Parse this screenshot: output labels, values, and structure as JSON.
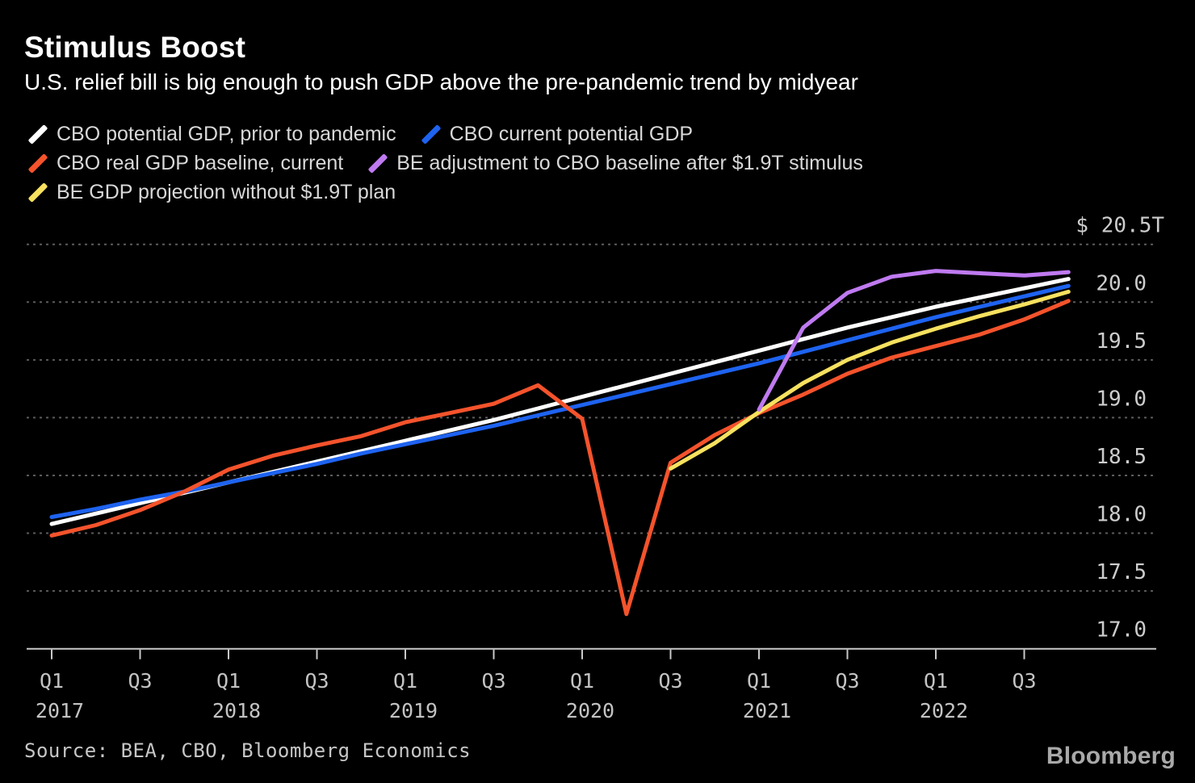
{
  "header": {
    "title": "Stimulus Boost",
    "subtitle": "U.S. relief bill is big enough to push GDP above the pre-pandemic trend by midyear"
  },
  "legend": {
    "rows": [
      [
        {
          "series_id": "cbo_potential_prior",
          "label": "CBO potential GDP, prior to pandemic"
        },
        {
          "series_id": "cbo_potential_current",
          "label": "CBO current potential GDP"
        }
      ],
      [
        {
          "series_id": "cbo_real_baseline",
          "label": "CBO real GDP baseline, current"
        },
        {
          "series_id": "be_adjustment_stimulus",
          "label": "BE adjustment to CBO baseline after $1.9T stimulus"
        }
      ],
      [
        {
          "series_id": "be_projection_no_plan",
          "label": "BE GDP projection without $1.9T plan"
        }
      ]
    ]
  },
  "chart_data": {
    "type": "line",
    "title": "Stimulus Boost",
    "x_unit": "quarter",
    "categories": [
      "2017Q1",
      "2017Q2",
      "2017Q3",
      "2017Q4",
      "2018Q1",
      "2018Q2",
      "2018Q3",
      "2018Q4",
      "2019Q1",
      "2019Q2",
      "2019Q3",
      "2019Q4",
      "2020Q1",
      "2020Q2",
      "2020Q3",
      "2020Q4",
      "2021Q1",
      "2021Q2",
      "2021Q3",
      "2021Q4",
      "2022Q1",
      "2022Q2",
      "2022Q3",
      "2022Q4"
    ],
    "x_axis": {
      "ticks": [
        {
          "index": 0,
          "label": "Q1",
          "year": "2017"
        },
        {
          "index": 2,
          "label": "Q3"
        },
        {
          "index": 4,
          "label": "Q1",
          "year": "2018"
        },
        {
          "index": 6,
          "label": "Q3"
        },
        {
          "index": 8,
          "label": "Q1",
          "year": "2019"
        },
        {
          "index": 10,
          "label": "Q3"
        },
        {
          "index": 12,
          "label": "Q1",
          "year": "2020"
        },
        {
          "index": 14,
          "label": "Q3"
        },
        {
          "index": 16,
          "label": "Q1",
          "year": "2021"
        },
        {
          "index": 18,
          "label": "Q3"
        },
        {
          "index": 20,
          "label": "Q1",
          "year": "2022"
        },
        {
          "index": 22,
          "label": "Q3"
        }
      ]
    },
    "y_axis": {
      "min": 17.0,
      "max": 20.5,
      "unit": "trillion USD",
      "gridline_values": [
        20.5,
        20.0,
        19.5,
        19.0,
        18.5,
        18.0,
        17.5
      ],
      "baseline_value": 17.0,
      "labels": [
        {
          "value": 20.5,
          "text": "$ 20.5T"
        },
        {
          "value": 20.0,
          "text": "20.0"
        },
        {
          "value": 19.5,
          "text": "19.5"
        },
        {
          "value": 19.0,
          "text": "19.0"
        },
        {
          "value": 18.5,
          "text": "18.5"
        },
        {
          "value": 18.0,
          "text": "18.0"
        },
        {
          "value": 17.5,
          "text": "17.5"
        },
        {
          "value": 17.0,
          "text": "17.0"
        }
      ]
    },
    "style": {
      "background": "#000000",
      "grid_color": "#5c5c5c",
      "axis_color": "#c9c9c9",
      "tick_label_color": "#c3c3c3",
      "y_label_color": "#cdcdcd",
      "grid_on": true,
      "legend_position": "top-left"
    },
    "series": [
      {
        "id": "cbo_potential_prior",
        "name": "CBO potential GDP, prior to pandemic",
        "color": "#ffffff",
        "values": [
          18.08,
          18.17,
          18.26,
          18.35,
          18.44,
          18.53,
          18.62,
          18.71,
          18.8,
          18.89,
          18.98,
          19.08,
          19.18,
          19.28,
          19.38,
          19.48,
          19.58,
          19.68,
          19.78,
          19.87,
          19.96,
          20.04,
          20.12,
          20.2
        ]
      },
      {
        "id": "cbo_potential_current",
        "name": "CBO current potential GDP",
        "color": "#1e63f0",
        "values": [
          18.14,
          18.21,
          18.29,
          18.36,
          18.44,
          18.52,
          18.6,
          18.69,
          18.77,
          18.85,
          18.93,
          19.02,
          19.11,
          19.2,
          19.29,
          19.38,
          19.47,
          19.57,
          19.67,
          19.77,
          19.87,
          19.96,
          20.05,
          20.14
        ]
      },
      {
        "id": "cbo_real_baseline",
        "name": "CBO real GDP baseline, current",
        "color": "#f4532c",
        "values": [
          17.98,
          18.07,
          18.2,
          18.36,
          18.55,
          18.67,
          18.76,
          18.84,
          18.96,
          19.04,
          19.12,
          19.28,
          18.99,
          17.3,
          18.61,
          18.85,
          19.04,
          19.2,
          19.38,
          19.52,
          19.62,
          19.72,
          19.85,
          20.01
        ]
      },
      {
        "id": "be_projection_no_plan",
        "name": "BE GDP projection without $1.9T plan",
        "color": "#f7e15f",
        "values": [
          null,
          null,
          null,
          null,
          null,
          null,
          null,
          null,
          null,
          null,
          null,
          null,
          null,
          null,
          18.56,
          18.78,
          19.05,
          19.3,
          19.5,
          19.65,
          19.77,
          19.88,
          19.98,
          20.09
        ]
      },
      {
        "id": "be_adjustment_stimulus",
        "name": "BE adjustment to CBO baseline after $1.9T stimulus",
        "color": "#bf7af0",
        "values": [
          null,
          null,
          null,
          null,
          null,
          null,
          null,
          null,
          null,
          null,
          null,
          null,
          null,
          null,
          null,
          null,
          19.07,
          19.78,
          20.08,
          20.22,
          20.27,
          20.25,
          20.23,
          20.26
        ]
      }
    ]
  },
  "footer": {
    "source": "Source: BEA, CBO, Bloomberg Economics",
    "logo": "Bloomberg"
  }
}
